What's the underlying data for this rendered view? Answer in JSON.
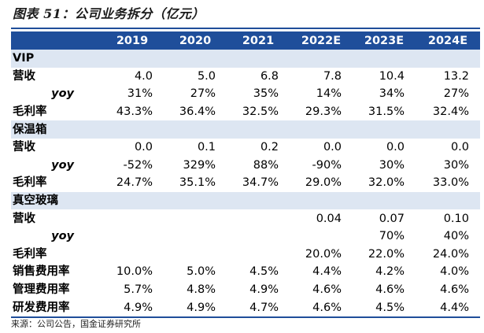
{
  "title": "图表 51：公司业务拆分（亿元）",
  "headers": [
    "2019",
    "2020",
    "2021",
    "2022E",
    "2023E",
    "2024E"
  ],
  "sections": [
    {
      "name": "VIP",
      "rows": [
        {
          "label": "营收",
          "kind": "lbl",
          "values": [
            "4.0",
            "5.0",
            "6.8",
            "7.8",
            "10.4",
            "13.2"
          ]
        },
        {
          "label": "yoy",
          "kind": "yoy",
          "values": [
            "31%",
            "27%",
            "35%",
            "14%",
            "34%",
            "27%"
          ]
        },
        {
          "label": "毛利率",
          "kind": "lbl",
          "values": [
            "43.3%",
            "36.4%",
            "32.5%",
            "29.3%",
            "31.5%",
            "32.4%"
          ]
        }
      ]
    },
    {
      "name": "保温箱",
      "rows": [
        {
          "label": "营收",
          "kind": "lbl",
          "values": [
            "0.0",
            "0.1",
            "0.2",
            "0.0",
            "0.0",
            "0.0"
          ]
        },
        {
          "label": "yoy",
          "kind": "yoy",
          "values": [
            "-52%",
            "329%",
            "88%",
            "-90%",
            "30%",
            "30%"
          ]
        },
        {
          "label": "毛利率",
          "kind": "lbl",
          "values": [
            "24.7%",
            "35.1%",
            "34.7%",
            "29.0%",
            "32.0%",
            "33.0%"
          ]
        }
      ]
    },
    {
      "name": "真空玻璃",
      "rows": [
        {
          "label": "营收",
          "kind": "lbl",
          "values": [
            "",
            "",
            "",
            "0.04",
            "0.07",
            "0.10"
          ]
        },
        {
          "label": "yoy",
          "kind": "yoy",
          "values": [
            "",
            "",
            "",
            "",
            "70%",
            "40%"
          ]
        },
        {
          "label": "毛利率",
          "kind": "lbl",
          "values": [
            "",
            "",
            "",
            "20.0%",
            "22.0%",
            "24.0%"
          ]
        }
      ]
    }
  ],
  "ratios": [
    {
      "label": "销售费用率",
      "values": [
        "10.0%",
        "5.0%",
        "4.5%",
        "4.4%",
        "4.2%",
        "4.0%"
      ]
    },
    {
      "label": "管理费用率",
      "values": [
        "5.7%",
        "4.8%",
        "4.9%",
        "4.6%",
        "4.6%",
        "4.6%"
      ]
    },
    {
      "label": "研发费用率",
      "values": [
        "4.9%",
        "4.9%",
        "4.7%",
        "4.6%",
        "4.5%",
        "4.4%"
      ]
    }
  ],
  "source": "来源：公司公告，国金证券研究所",
  "colors": {
    "header_bg": "#1f4e9a",
    "section_bg": "#dde6f2",
    "rule": "#1f4e9a"
  }
}
